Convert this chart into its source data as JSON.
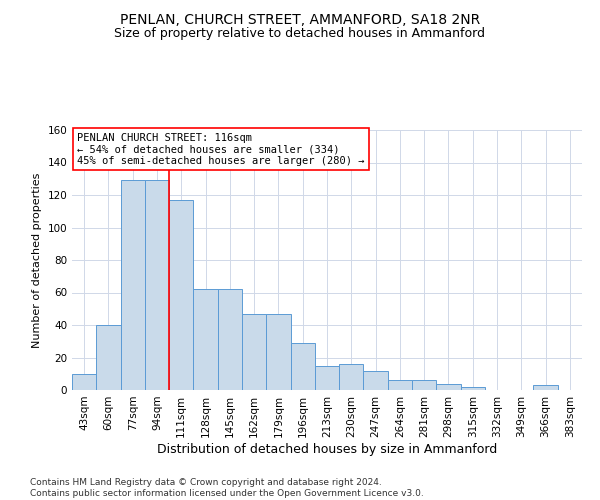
{
  "title": "PENLAN, CHURCH STREET, AMMANFORD, SA18 2NR",
  "subtitle": "Size of property relative to detached houses in Ammanford",
  "xlabel_bottom": "Distribution of detached houses by size in Ammanford",
  "ylabel": "Number of detached properties",
  "categories": [
    "43sqm",
    "60sqm",
    "77sqm",
    "94sqm",
    "111sqm",
    "128sqm",
    "145sqm",
    "162sqm",
    "179sqm",
    "196sqm",
    "213sqm",
    "230sqm",
    "247sqm",
    "264sqm",
    "281sqm",
    "298sqm",
    "315sqm",
    "332sqm",
    "349sqm",
    "366sqm",
    "383sqm"
  ],
  "values": [
    10,
    40,
    129,
    129,
    117,
    62,
    62,
    47,
    47,
    29,
    15,
    16,
    12,
    6,
    6,
    4,
    2,
    0,
    0,
    3,
    0
  ],
  "bar_color": "#c9daea",
  "bar_edge_color": "#5b9bd5",
  "red_line_index": 4,
  "annotation_text": "PENLAN CHURCH STREET: 116sqm\n← 54% of detached houses are smaller (334)\n45% of semi-detached houses are larger (280) →",
  "ylim": [
    0,
    160
  ],
  "yticks": [
    0,
    20,
    40,
    60,
    80,
    100,
    120,
    140,
    160
  ],
  "grid_color": "#d0d8e8",
  "footnote": "Contains HM Land Registry data © Crown copyright and database right 2024.\nContains public sector information licensed under the Open Government Licence v3.0.",
  "title_fontsize": 10,
  "subtitle_fontsize": 9,
  "annotation_fontsize": 7.5,
  "ylabel_fontsize": 8,
  "xlabel_fontsize": 9,
  "tick_fontsize": 7.5,
  "footnote_fontsize": 6.5
}
